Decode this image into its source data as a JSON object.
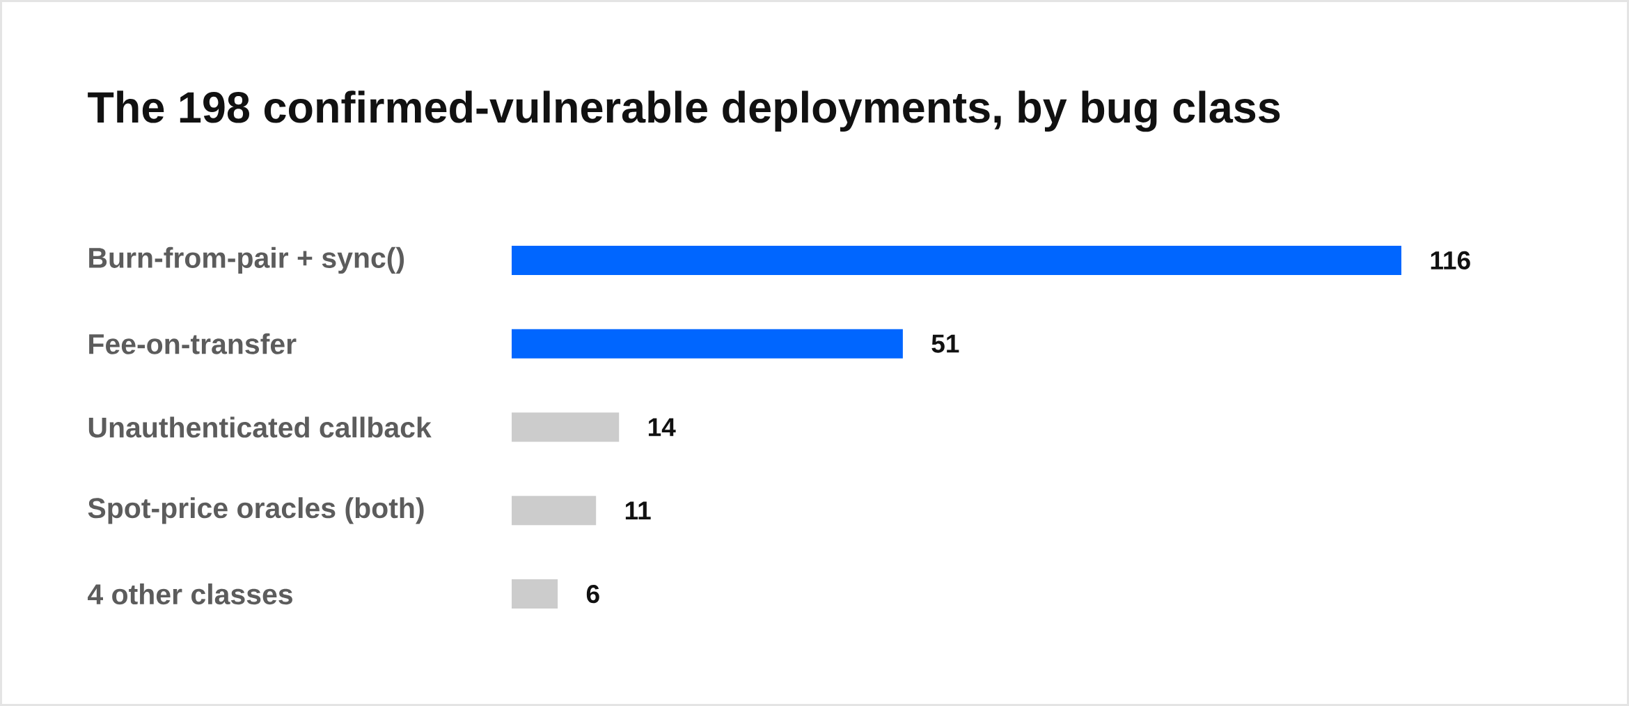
{
  "chart_data": {
    "type": "bar",
    "orientation": "horizontal",
    "title": "The 198 confirmed-vulnerable deployments, by bug class",
    "categories": [
      "Burn-from-pair + sync()",
      "Fee-on-transfer",
      "Unauthenticated callback",
      "Spot-price oracles (both)",
      "4 other classes"
    ],
    "values": [
      116,
      51,
      14,
      11,
      6
    ],
    "colors": [
      "#0066ff",
      "#0066ff",
      "#cccccc",
      "#cccccc",
      "#cccccc"
    ],
    "data_labels": true
  }
}
